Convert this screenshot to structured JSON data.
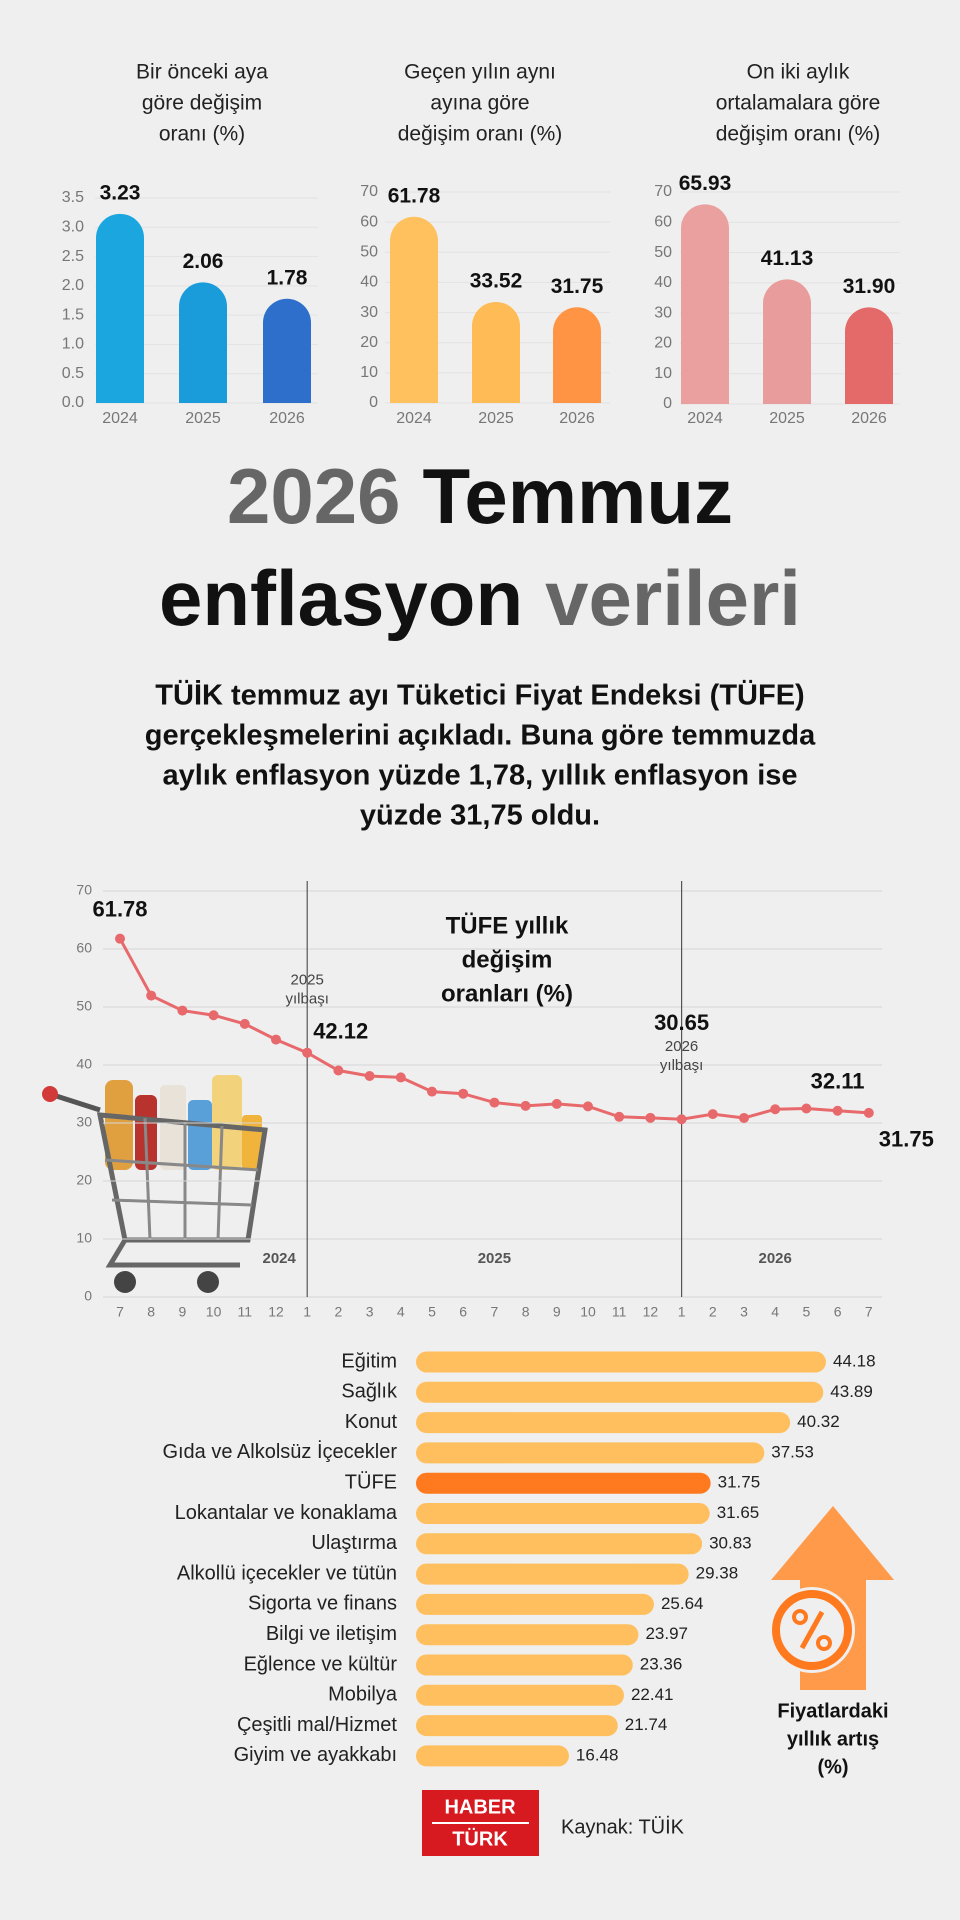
{
  "headline": [
    {
      "text": "2026",
      "color": "#666666"
    },
    {
      "text": "Temmuz",
      "color": "#111111"
    },
    {
      "text": "enflasyon",
      "color": "#111111"
    },
    {
      "text": "verileri",
      "color": "#666666"
    }
  ],
  "summary": [
    "TÜİK temmuz ayı Tüketici Fiyat Endeksi (TÜFE)",
    "gerçekleşmelerini açıkladı. Buna göre temmuzda",
    "aylık enflasyon yüzde 1,78, yıllık enflasyon ise",
    "yüzde 31,75 oldu."
  ],
  "source": {
    "logo": [
      "HABER",
      "TÜRK"
    ],
    "text": "Kaynak: TÜİK"
  },
  "chart_data": [
    {
      "type": "bar",
      "title": [
        "Bir önceki aya",
        "göre değişim",
        "oranı (%)"
      ],
      "categories": [
        2024,
        2025,
        2026
      ],
      "values": [
        3.23,
        2.06,
        1.78
      ],
      "colors": [
        "#1ba6df",
        "#1a9cdb",
        "#2f6fcc"
      ],
      "ylim": [
        0,
        3.5
      ],
      "yticks": [
        {
          "value": 0,
          "label": "0.0"
        },
        {
          "value": 0.5,
          "label": "0.5"
        },
        {
          "value": 1,
          "label": "1.0"
        },
        {
          "value": 1.5,
          "label": "1.5"
        },
        {
          "value": 2,
          "label": "2.0"
        },
        {
          "value": 2.5,
          "label": "2.5"
        },
        {
          "value": 3,
          "label": "3.0"
        },
        {
          "value": 3.5,
          "label": "3.5"
        }
      ],
      "grid": true
    },
    {
      "type": "bar",
      "title": [
        "Geçen yılın aynı",
        "ayına göre",
        "değişim oranı (%)"
      ],
      "categories": [
        2024,
        2025,
        2026
      ],
      "values": [
        61.78,
        33.52,
        31.75
      ],
      "colors": [
        "#ffc15e",
        "#ffbb55",
        "#ff9444"
      ],
      "ylim": [
        0,
        70
      ],
      "yticks": [
        0,
        10,
        20,
        30,
        40,
        50,
        60,
        70
      ],
      "grid": true
    },
    {
      "type": "bar",
      "title": [
        "On iki aylık",
        "ortalamalara göre",
        "değişim oranı (%)"
      ],
      "categories": [
        2024,
        2025,
        2026
      ],
      "values": [
        65.93,
        41.13,
        31.9
      ],
      "value_labels": [
        "65.93",
        "41.13",
        "31.90"
      ],
      "colors": [
        "#eba0a0",
        "#e99c9c",
        "#e46a6a"
      ],
      "ylim": [
        0,
        70
      ],
      "yticks": [
        0,
        10,
        20,
        30,
        40,
        50,
        60,
        70
      ],
      "grid": true
    },
    {
      "type": "line",
      "title": [
        "TÜFE yıllık",
        "değişim",
        "oranları (%)"
      ],
      "categories": [
        7,
        8,
        9,
        10,
        11,
        12,
        1,
        2,
        3,
        4,
        5,
        6,
        7,
        8,
        9,
        10,
        11,
        12,
        1,
        2,
        3,
        4,
        5,
        6,
        7
      ],
      "values": [
        61.78,
        51.97,
        49.38,
        48.58,
        47.09,
        44.38,
        42.12,
        39.05,
        38.1,
        37.86,
        35.41,
        35.05,
        33.52,
        32.95,
        33.29,
        32.87,
        31.07,
        30.89,
        30.65,
        31.53,
        30.87,
        32.37,
        32.5,
        32.11,
        31.75
      ],
      "value_labels": [
        "61.78",
        null,
        null,
        null,
        null,
        null,
        "42.12",
        null,
        null,
        null,
        null,
        null,
        null,
        null,
        null,
        null,
        null,
        null,
        "30.65",
        null,
        null,
        null,
        null,
        "32.11",
        "31.75"
      ],
      "periods": [
        "2024",
        "2025",
        "2026"
      ],
      "new_year_notes": [
        [
          "2025",
          "yılbaşı"
        ],
        [
          "2026",
          "yılbaşı"
        ]
      ],
      "color": "#e8696b",
      "ylim": [
        0,
        70
      ],
      "yticks": [
        0,
        10,
        20,
        30,
        40,
        50,
        60,
        70
      ],
      "grid": true
    },
    {
      "type": "hbar",
      "title": [
        "Fiyatlardaki",
        "yıllık artış",
        "(%)"
      ],
      "categories": [
        "Eğitim",
        "Sağlık",
        "Konut",
        "Gıda ve Alkolsüz İçecekler",
        "TÜFE",
        "Lokantalar ve konaklama",
        "Ulaştırma",
        "Alkollü içecekler ve tütün",
        "Sigorta ve finans",
        "Bilgi ve iletişim",
        "Eğlence ve kültür",
        "Mobilya",
        "Çeşitli mal/Hizmet",
        "Giyim ve ayakkabı"
      ],
      "values": [
        44.18,
        43.89,
        40.32,
        37.53,
        31.75,
        31.65,
        30.83,
        29.38,
        25.64,
        23.97,
        23.36,
        22.41,
        21.74,
        16.48
      ],
      "colors": [
        "#ffbf5e",
        "#ffbf5e",
        "#ffbf5e",
        "#ffbf5e",
        "#ff7a1f",
        "#ffbf5e",
        "#ffbf5e",
        "#ffbf5e",
        "#ffbf5e",
        "#ffbf5e",
        "#ffbf5e",
        "#ffbf5e",
        "#ffbf5e",
        "#ffbf5e"
      ]
    }
  ]
}
